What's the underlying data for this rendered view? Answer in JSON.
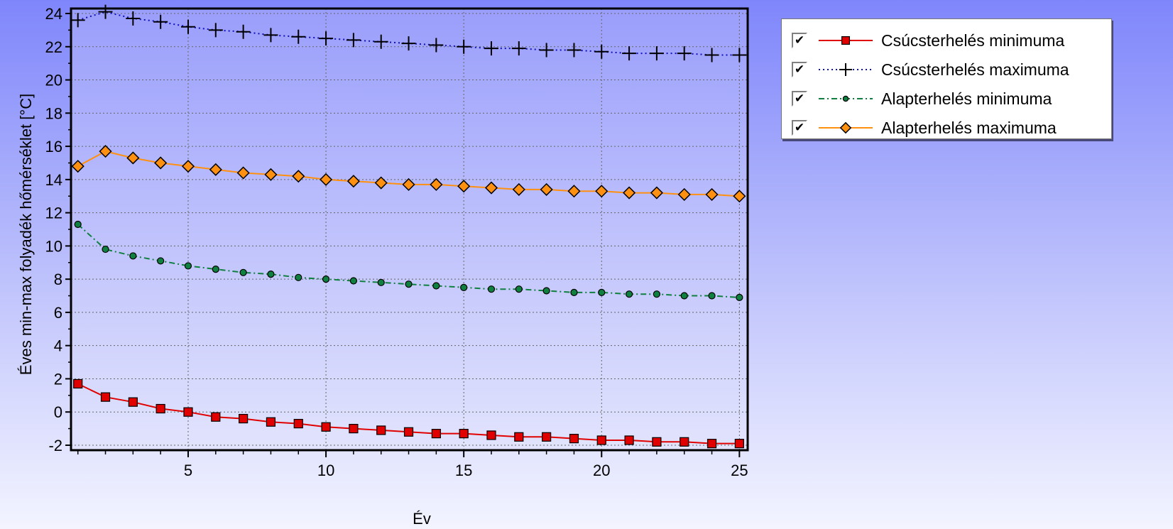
{
  "chart_data": {
    "type": "line",
    "xlabel": "Év",
    "ylabel": "Éves min-max folyadék hőmérséklet [°C]",
    "xlim": [
      0.75,
      25.3
    ],
    "ylim": [
      -2.3,
      24.3
    ],
    "xticks": [
      5,
      10,
      15,
      20,
      25
    ],
    "yticks": [
      -2,
      0,
      2,
      4,
      6,
      8,
      10,
      12,
      14,
      16,
      18,
      20,
      22,
      24
    ],
    "grid": true,
    "legend_position": "right of plot, top",
    "x": [
      1,
      2,
      3,
      4,
      5,
      6,
      7,
      8,
      9,
      10,
      11,
      12,
      13,
      14,
      15,
      16,
      17,
      18,
      19,
      20,
      21,
      22,
      23,
      24,
      25
    ],
    "series": [
      {
        "name": "Csúcsterhelés minimuma",
        "color": "#e00000",
        "line": "solid",
        "marker": "square",
        "values": [
          1.7,
          0.9,
          0.6,
          0.2,
          0.0,
          -0.3,
          -0.4,
          -0.6,
          -0.7,
          -0.9,
          -1.0,
          -1.1,
          -1.2,
          -1.3,
          -1.3,
          -1.4,
          -1.5,
          -1.5,
          -1.6,
          -1.7,
          -1.7,
          -1.8,
          -1.8,
          -1.9,
          -1.9
        ]
      },
      {
        "name": "Csúcsterhelés maximuma",
        "color": "#1010c0",
        "line": "dotted",
        "marker": "plus",
        "values": [
          23.6,
          24.1,
          23.7,
          23.5,
          23.2,
          23.0,
          22.9,
          22.7,
          22.6,
          22.5,
          22.4,
          22.3,
          22.2,
          22.1,
          22.0,
          21.9,
          21.9,
          21.8,
          21.8,
          21.7,
          21.6,
          21.6,
          21.6,
          21.5,
          21.5
        ]
      },
      {
        "name": "Alapterhelés minimuma",
        "color": "#108040",
        "line": "dashdot",
        "marker": "circle",
        "values": [
          11.3,
          9.8,
          9.4,
          9.1,
          8.8,
          8.6,
          8.4,
          8.3,
          8.1,
          8.0,
          7.9,
          7.8,
          7.7,
          7.6,
          7.5,
          7.4,
          7.4,
          7.3,
          7.2,
          7.2,
          7.1,
          7.1,
          7.0,
          7.0,
          6.9
        ]
      },
      {
        "name": "Alapterhelés maximuma",
        "color": "#ff9010",
        "line": "solid",
        "marker": "diamond",
        "values": [
          14.8,
          15.7,
          15.3,
          15.0,
          14.8,
          14.6,
          14.4,
          14.3,
          14.2,
          14.0,
          13.9,
          13.8,
          13.7,
          13.7,
          13.6,
          13.5,
          13.4,
          13.4,
          13.3,
          13.3,
          13.2,
          13.2,
          13.1,
          13.1,
          13.0
        ]
      }
    ]
  }
}
